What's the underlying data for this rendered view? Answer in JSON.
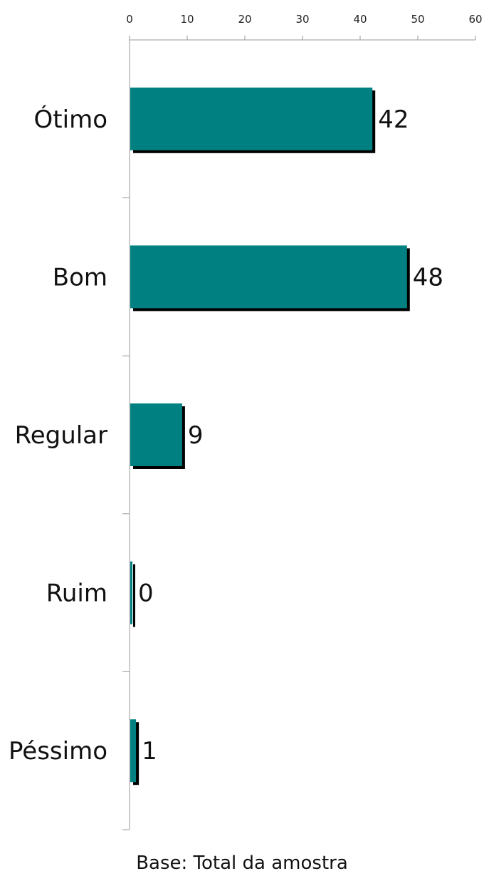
{
  "chart_data": {
    "type": "bar",
    "orientation": "horizontal",
    "categories": [
      "Ótimo",
      "Bom",
      "Regular",
      "Ruim",
      "Péssimo"
    ],
    "values": [
      42,
      48,
      9,
      0,
      1
    ],
    "value_labels": [
      "42",
      "48",
      "9",
      "0",
      "1"
    ],
    "xlim": [
      0,
      60
    ],
    "xticks": [
      0,
      10,
      20,
      30,
      40,
      50,
      60
    ],
    "x_axis_position": "top",
    "grid": false,
    "legend": "none",
    "bar_color": "#008080",
    "shadow_color": "#000000"
  },
  "footnote": "Base: Total da amostra"
}
